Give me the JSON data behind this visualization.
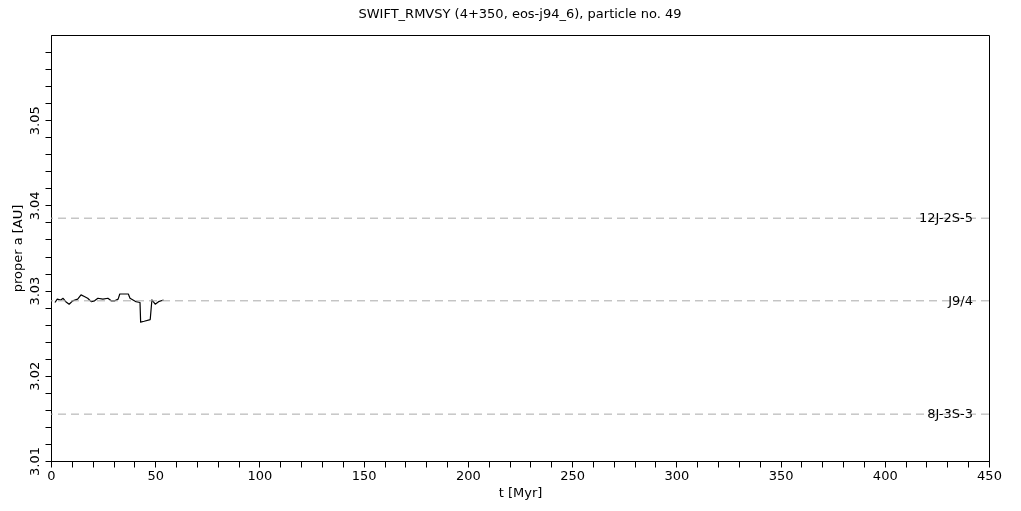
{
  "chart_data": {
    "type": "line",
    "title": "SWIFT_RMVSY (4+350, eos-j94_6), particle no. 49",
    "xlabel": "t [Myr]",
    "ylabel": "proper a [AU]",
    "x": [
      1.9,
      3.0,
      4.7,
      5.8,
      7.1,
      8.7,
      10.4,
      12.8,
      14.4,
      16.0,
      17.6,
      19.3,
      20.9,
      22.5,
      24.9,
      27.3,
      28.9,
      30.6,
      32.2,
      33.0,
      37.1,
      37.9,
      40.8,
      42.7,
      43.0,
      44.7,
      47.6,
      48.4,
      50.0,
      51.6,
      54.0
    ],
    "series": [
      {
        "color": "#000000",
        "values": [
          3.0286,
          3.029,
          3.0289,
          3.0291,
          3.0287,
          3.0284,
          3.0288,
          3.029,
          3.0295,
          3.0293,
          3.0291,
          3.0287,
          3.0288,
          3.0291,
          3.029,
          3.0291,
          3.0288,
          3.0288,
          3.029,
          3.0296,
          3.0296,
          3.0291,
          3.0287,
          3.0286,
          3.0263,
          3.0264,
          3.0266,
          3.0289,
          3.0284,
          3.0287,
          3.0289
        ]
      }
    ],
    "xlim": [
      0,
      450
    ],
    "xticks": [
      0,
      {
        "value": 10,
        "label": null
      },
      {
        "value": 20,
        "label": null
      },
      {
        "value": 30,
        "label": null
      },
      {
        "value": 40,
        "label": null
      },
      50,
      {
        "value": 60,
        "label": null
      },
      {
        "value": 70,
        "label": null
      },
      {
        "value": 80,
        "label": null
      },
      {
        "value": 90,
        "label": null
      },
      100,
      {
        "value": 110,
        "label": null
      },
      {
        "value": 120,
        "label": null
      },
      {
        "value": 130,
        "label": null
      },
      {
        "value": 140,
        "label": null
      },
      150,
      {
        "value": 160,
        "label": null
      },
      {
        "value": 170,
        "label": null
      },
      {
        "value": 180,
        "label": null
      },
      {
        "value": 190,
        "label": null
      },
      200,
      {
        "value": 210,
        "label": null
      },
      {
        "value": 220,
        "label": null
      },
      {
        "value": 230,
        "label": null
      },
      {
        "value": 240,
        "label": null
      },
      250,
      {
        "value": 260,
        "label": null
      },
      {
        "value": 270,
        "label": null
      },
      {
        "value": 280,
        "label": null
      },
      {
        "value": 290,
        "label": null
      },
      300,
      {
        "value": 310,
        "label": null
      },
      {
        "value": 320,
        "label": null
      },
      {
        "value": 330,
        "label": null
      },
      {
        "value": 340,
        "label": null
      },
      350,
      {
        "value": 360,
        "label": null
      },
      {
        "value": 370,
        "label": null
      },
      {
        "value": 380,
        "label": null
      },
      {
        "value": 390,
        "label": null
      },
      400,
      {
        "value": 410,
        "label": null
      },
      {
        "value": 420,
        "label": null
      },
      {
        "value": 430,
        "label": null
      },
      {
        "value": 440,
        "label": null
      },
      450
    ],
    "ylim": [
      3.01,
      3.06
    ],
    "yticks": [
      3.01,
      {
        "value": 3.012,
        "label": null
      },
      {
        "value": 3.014,
        "label": null
      },
      {
        "value": 3.016,
        "label": null
      },
      {
        "value": 3.018,
        "label": null
      },
      3.02,
      {
        "value": 3.022,
        "label": null
      },
      {
        "value": 3.024,
        "label": null
      },
      {
        "value": 3.026,
        "label": null
      },
      {
        "value": 3.028,
        "label": null
      },
      3.03,
      {
        "value": 3.032,
        "label": null
      },
      {
        "value": 3.034,
        "label": null
      },
      {
        "value": 3.036,
        "label": null
      },
      {
        "value": 3.038,
        "label": null
      },
      3.04,
      {
        "value": 3.042,
        "label": null
      },
      {
        "value": 3.044,
        "label": null
      },
      {
        "value": 3.046,
        "label": null
      },
      {
        "value": 3.048,
        "label": null
      },
      3.05,
      {
        "value": 3.052,
        "label": null
      },
      {
        "value": 3.054,
        "label": null
      },
      {
        "value": 3.056,
        "label": null
      },
      {
        "value": 3.058,
        "label": null
      }
    ],
    "ref_lines": [
      {
        "axis": "y",
        "value": 3.0385,
        "label": "12J-2S-5",
        "color": "#aaaaaa",
        "line_style": "dashed"
      },
      {
        "axis": "y",
        "value": 3.0288,
        "label": "J9/4",
        "color": "#aaaaaa",
        "line_style": "dashed"
      },
      {
        "axis": "y",
        "value": 3.0155,
        "label": "8J-3S-3",
        "color": "#aaaaaa",
        "line_style": "dashed"
      }
    ],
    "grid": false,
    "marker": "none",
    "line_style": "solid"
  }
}
